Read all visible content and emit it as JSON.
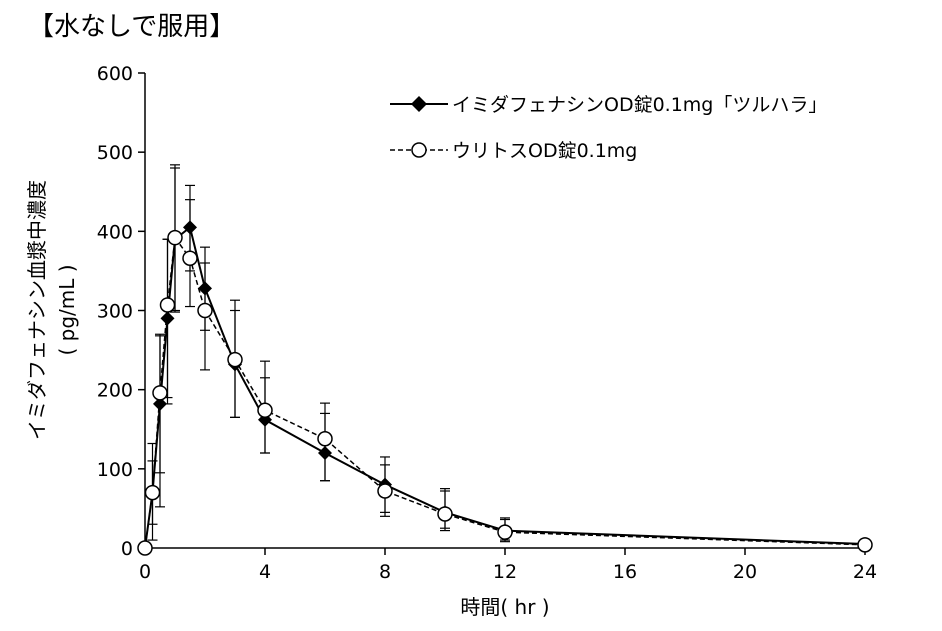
{
  "heading": "【水なしで服用】",
  "chart_data": {
    "type": "line",
    "title": "",
    "xlabel": "時間( hr )",
    "ylabel_line1": "イミダフェナシン血漿中濃度",
    "ylabel_line2": "( pg/mL )",
    "xlim": [
      0,
      24
    ],
    "ylim": [
      0,
      600
    ],
    "x_ticks": [
      0,
      4,
      8,
      12,
      16,
      20,
      24
    ],
    "y_ticks": [
      0,
      100,
      200,
      300,
      400,
      500,
      600
    ],
    "grid": false,
    "legend_position": "top-right",
    "series": [
      {
        "name": "イミダフェナシンOD錠0.1mg「ツルハラ」",
        "marker": "filled-diamond",
        "line": "solid",
        "x": [
          0,
          0.25,
          0.5,
          0.75,
          1,
          1.5,
          2,
          3,
          4,
          6,
          8,
          10,
          12,
          24
        ],
        "y": [
          0,
          70,
          182,
          290,
          390,
          405,
          328,
          232,
          162,
          120,
          80,
          45,
          22,
          5
        ],
        "err_upper": [
          0,
          132,
          268,
          390,
          480,
          458,
          380,
          300,
          215,
          170,
          115,
          72,
          38,
          10
        ],
        "err_lower": [
          0,
          10,
          95,
          190,
          300,
          350,
          275,
          165,
          120,
          85,
          45,
          25,
          10,
          2
        ]
      },
      {
        "name": "ウリトスOD錠0.1mg",
        "marker": "open-circle",
        "line": "dashed",
        "x": [
          0,
          0.25,
          0.5,
          0.75,
          1,
          1.5,
          2,
          3,
          4,
          6,
          8,
          10,
          12,
          24
        ],
        "y": [
          0,
          70,
          196,
          307,
          392,
          366,
          300,
          238,
          174,
          138,
          72,
          43,
          20,
          4
        ],
        "err_upper": [
          0,
          110,
          270,
          390,
          484,
          440,
          360,
          313,
          236,
          183,
          105,
          75,
          36,
          8
        ],
        "err_lower": [
          0,
          30,
          52,
          182,
          298,
          305,
          225,
          165,
          120,
          85,
          40,
          22,
          8,
          1
        ]
      }
    ]
  }
}
